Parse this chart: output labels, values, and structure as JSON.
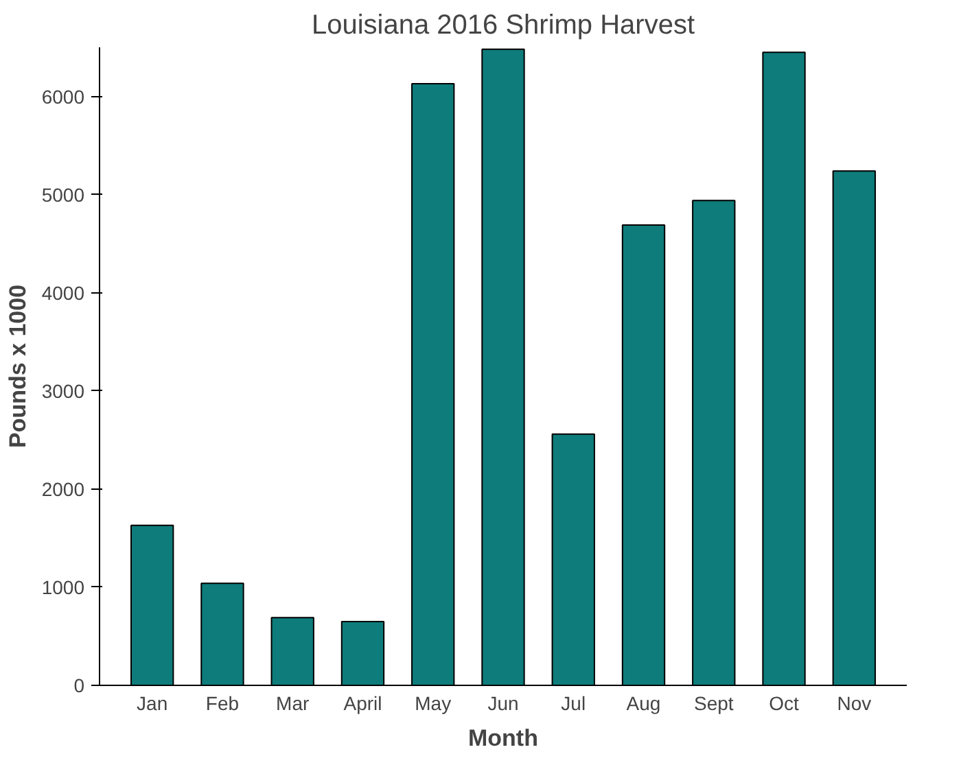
{
  "chart_data": {
    "type": "bar",
    "title": "Louisiana 2016 Shrimp Harvest",
    "xlabel": "Month",
    "ylabel": "Pounds x 1000",
    "categories": [
      "Jan",
      "Feb",
      "Mar",
      "April",
      "May",
      "Jun",
      "Jul",
      "Aug",
      "Sept",
      "Oct",
      "Nov"
    ],
    "values": [
      1630,
      1040,
      690,
      650,
      6130,
      6480,
      2560,
      4690,
      4940,
      6450,
      5240
    ],
    "color": "#0e7c7b",
    "ylim": [
      0,
      6500
    ],
    "yticks": [
      0,
      1000,
      2000,
      3000,
      4000,
      5000,
      6000
    ],
    "grid": false
  }
}
